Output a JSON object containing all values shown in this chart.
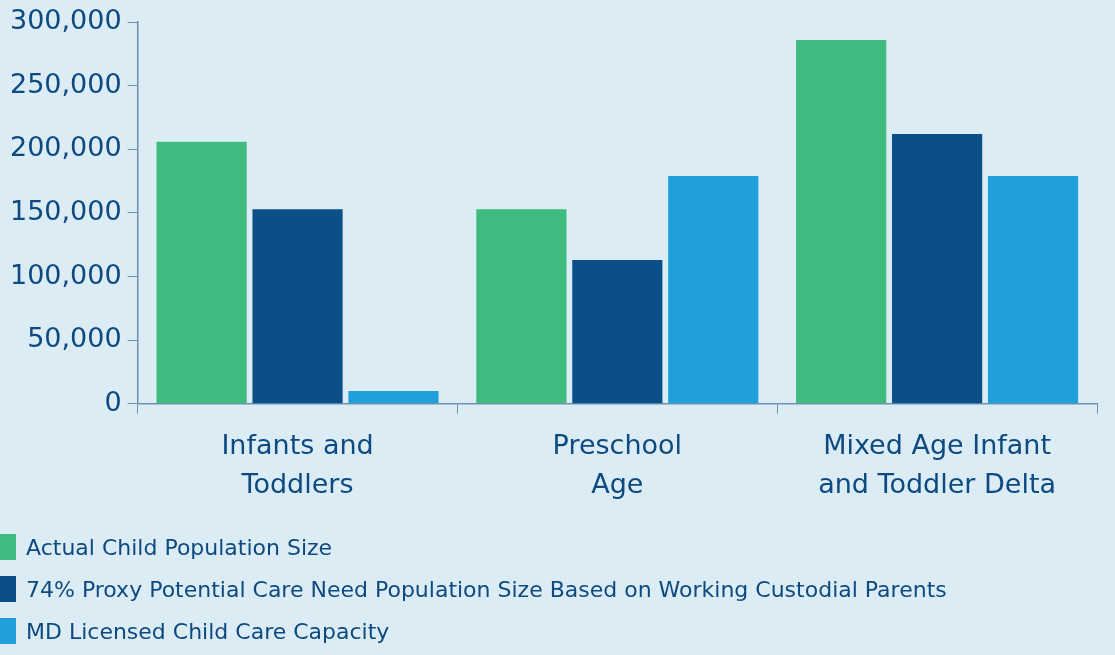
{
  "chart_data": {
    "type": "bar",
    "categories": [
      "Infants and Toddlers",
      "Preschool Age",
      "Mixed Age Infant and Toddler Delta"
    ],
    "series": [
      {
        "name": "Actual Child Population Size",
        "color": "#3fbb7f",
        "values": [
          206000,
          153000,
          286000
        ]
      },
      {
        "name": "74% Proxy Potential Care Need Population Size Based on Working Custodial Parents",
        "color": "#0b4f88",
        "values": [
          153000,
          113000,
          212000
        ]
      },
      {
        "name": "MD Licensed Child Care Capacity",
        "color": "#1fa0db",
        "values": [
          10000,
          179000,
          179000
        ]
      }
    ],
    "ylim": [
      0,
      300000
    ],
    "yticks": [
      {
        "value": 0,
        "label": "0"
      },
      {
        "value": 50000,
        "label": "50,000"
      },
      {
        "value": 100000,
        "label": "100,000"
      },
      {
        "value": 150000,
        "label": "150,000"
      },
      {
        "value": 200000,
        "label": "200,000"
      },
      {
        "value": 250000,
        "label": "250,000"
      },
      {
        "value": 300000,
        "label": "300,000"
      }
    ],
    "grid": false,
    "legend": "bottom"
  }
}
